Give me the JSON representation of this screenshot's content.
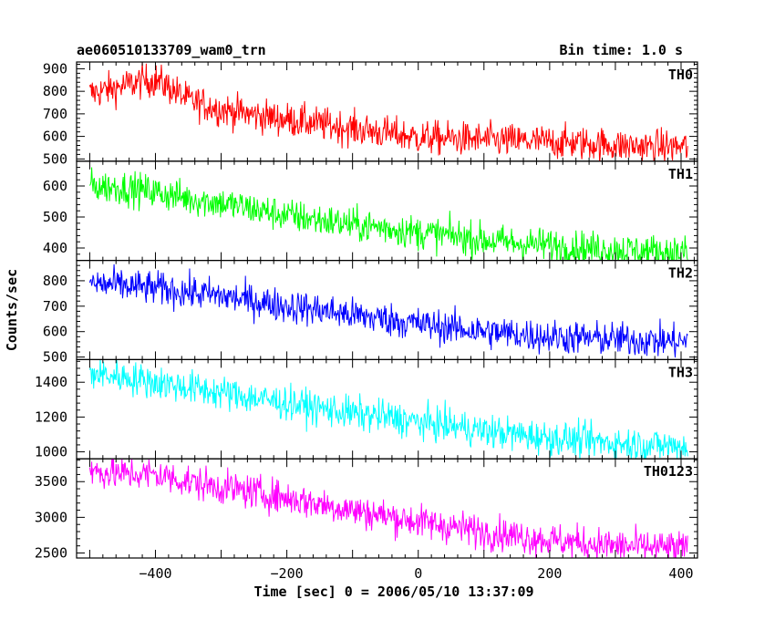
{
  "header": {
    "title": "ae060510133709_wam0_trn",
    "bin_time": "Bin time: 1.0 s"
  },
  "chart_data": {
    "type": "line",
    "xlabel": "Time [sec] 0 = 2006/05/10 13:37:09",
    "ylabel": "Counts/sec",
    "xlim": [
      -520,
      425
    ],
    "x_ticks": [
      -400,
      -200,
      0,
      200,
      400
    ],
    "x_tick_labels": [
      "−400",
      "−200",
      "0",
      "200",
      "400"
    ],
    "bin_time_s": 1.0,
    "panels": [
      {
        "name": "TH0",
        "color": "#ff0000",
        "ylim": [
          490,
          930
        ],
        "y_ticks": [
          500,
          600,
          700,
          800,
          900
        ],
        "x": [
          -500,
          -460,
          -420,
          -400,
          -380,
          -350,
          -300,
          -250,
          -200,
          -150,
          -100,
          -50,
          0,
          50,
          100,
          150,
          200,
          250,
          300,
          350,
          410
        ],
        "y": [
          790,
          815,
          845,
          850,
          820,
          760,
          720,
          695,
          675,
          655,
          635,
          615,
          595,
          590,
          585,
          580,
          575,
          570,
          560,
          555,
          555
        ]
      },
      {
        "name": "TH1",
        "color": "#00ff00",
        "ylim": [
          360,
          680
        ],
        "y_ticks": [
          400,
          500,
          600
        ],
        "x": [
          -500,
          -450,
          -400,
          -350,
          -300,
          -250,
          -200,
          -150,
          -100,
          -50,
          0,
          50,
          100,
          150,
          200,
          250,
          300,
          350,
          410
        ],
        "y": [
          600,
          595,
          580,
          560,
          545,
          525,
          505,
          490,
          475,
          465,
          450,
          440,
          425,
          415,
          410,
          400,
          395,
          390,
          385
        ]
      },
      {
        "name": "TH2",
        "color": "#0000ff",
        "ylim": [
          490,
          880
        ],
        "y_ticks": [
          500,
          600,
          700,
          800
        ],
        "x": [
          -500,
          -450,
          -400,
          -350,
          -300,
          -250,
          -200,
          -150,
          -100,
          -50,
          0,
          50,
          100,
          150,
          200,
          250,
          300,
          350,
          410
        ],
        "y": [
          790,
          780,
          770,
          755,
          740,
          720,
          700,
          685,
          665,
          650,
          630,
          615,
          600,
          590,
          580,
          575,
          570,
          565,
          560
        ]
      },
      {
        "name": "TH3",
        "color": "#00ffff",
        "ylim": [
          960,
          1530
        ],
        "y_ticks": [
          1000,
          1200,
          1400
        ],
        "x": [
          -500,
          -450,
          -400,
          -350,
          -300,
          -250,
          -200,
          -150,
          -100,
          -50,
          0,
          50,
          100,
          150,
          200,
          250,
          300,
          350,
          410
        ],
        "y": [
          1450,
          1430,
          1400,
          1370,
          1340,
          1310,
          1280,
          1250,
          1220,
          1200,
          1170,
          1150,
          1120,
          1100,
          1080,
          1065,
          1050,
          1040,
          1030
        ]
      },
      {
        "name": "TH0123",
        "color": "#ff00ff",
        "ylim": [
          2430,
          3820
        ],
        "y_ticks": [
          2500,
          3000,
          3500
        ],
        "x": [
          -500,
          -450,
          -400,
          -350,
          -300,
          -250,
          -200,
          -150,
          -100,
          -50,
          0,
          50,
          100,
          150,
          200,
          250,
          300,
          350,
          410
        ],
        "y": [
          3650,
          3610,
          3600,
          3500,
          3420,
          3350,
          3270,
          3190,
          3100,
          3020,
          2940,
          2870,
          2800,
          2740,
          2680,
          2640,
          2600,
          2580,
          2560
        ]
      }
    ]
  }
}
